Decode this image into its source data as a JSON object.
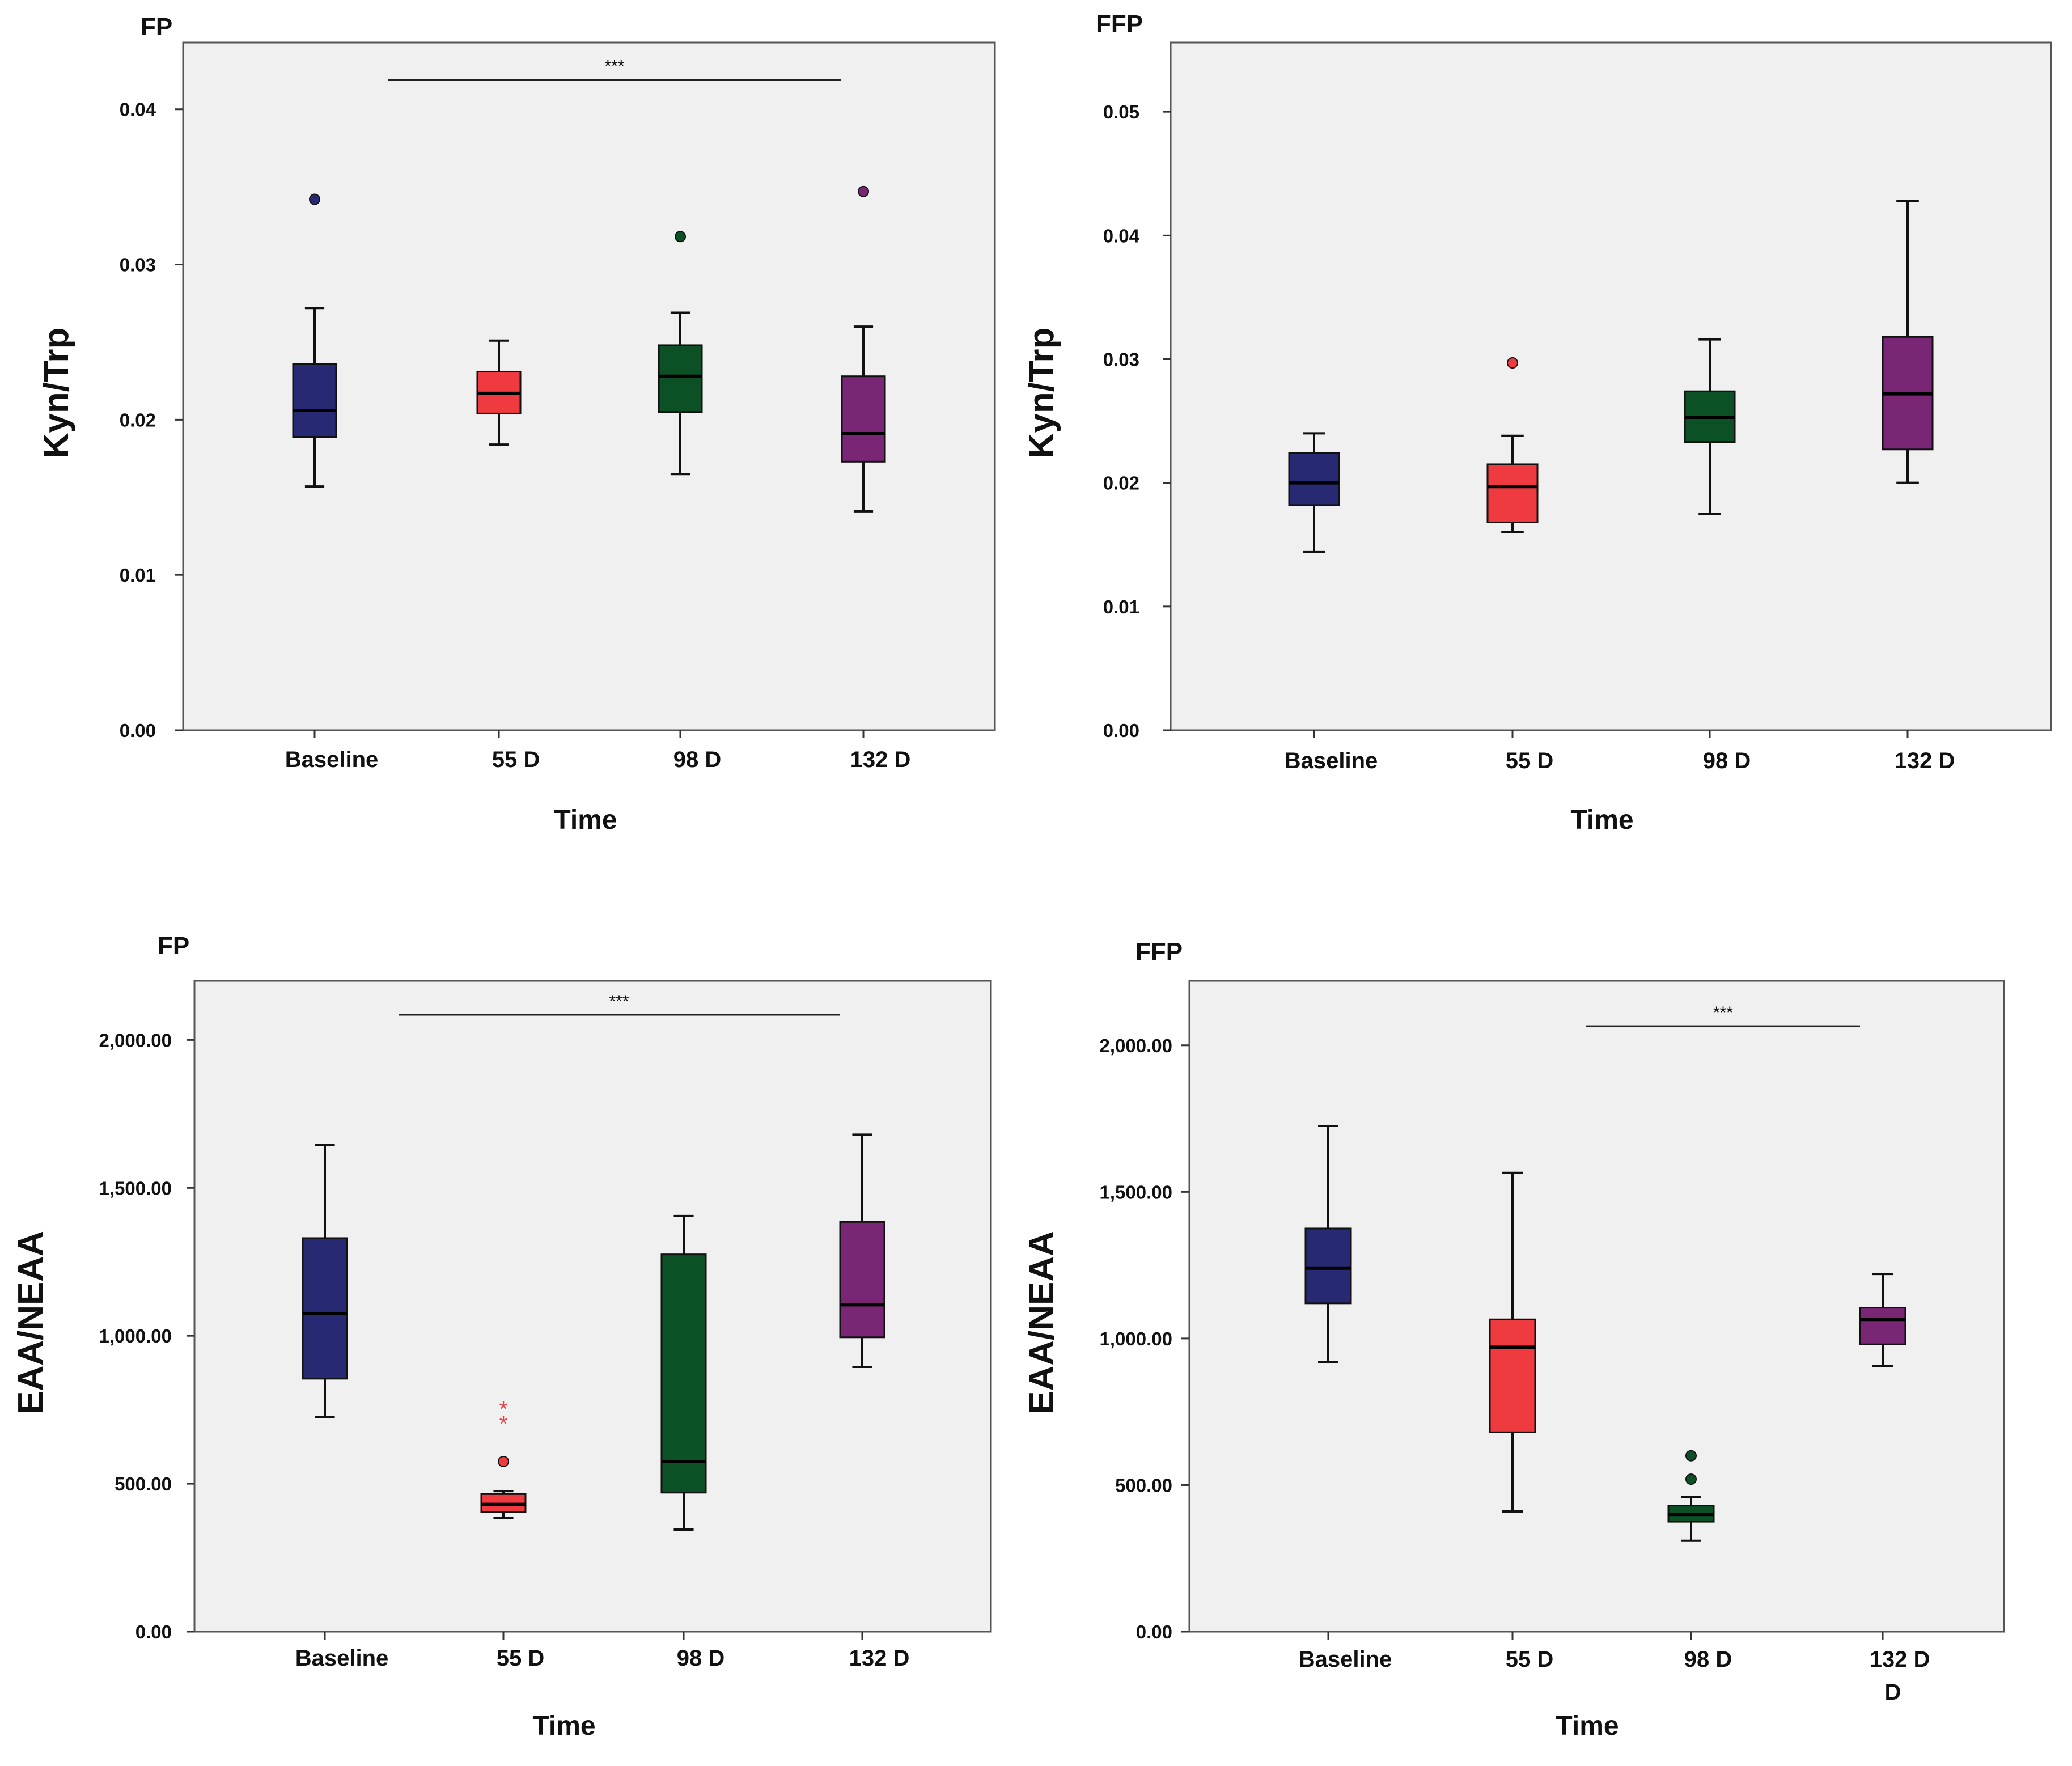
{
  "colors": {
    "Baseline": "#272a72",
    "55 D": "#ef3a3f",
    "98 D": "#0c5126",
    "132 D": "#792675"
  },
  "chart_data": [
    {
      "type": "box",
      "title": "FP",
      "xlabel": "Time",
      "ylabel": "Kyn/Trp",
      "categories": [
        "Baseline",
        "55 D",
        "98 D",
        "132 D"
      ],
      "category_labels": [
        [
          "Baseline"
        ],
        [
          "55 D"
        ],
        [
          "98 D"
        ],
        [
          "132 D"
        ]
      ],
      "yticks": [
        0.0,
        0.01,
        0.02,
        0.03,
        0.04
      ],
      "ytick_labels": [
        "0.00",
        "0.01",
        "0.02",
        "0.03",
        "0.04"
      ],
      "ylim": [
        0.0,
        0.0443
      ],
      "boxes": [
        {
          "min": 0.0157,
          "q1": 0.0189,
          "median": 0.0206,
          "q3": 0.0236,
          "max": 0.0272,
          "outliers": [
            0.0342
          ],
          "extremes": []
        },
        {
          "min": 0.0184,
          "q1": 0.0204,
          "median": 0.0217,
          "q3": 0.0231,
          "max": 0.0251,
          "outliers": [],
          "extremes": []
        },
        {
          "min": 0.0165,
          "q1": 0.0205,
          "median": 0.0228,
          "q3": 0.0248,
          "max": 0.0269,
          "outliers": [
            0.0318
          ],
          "extremes": []
        },
        {
          "min": 0.0141,
          "q1": 0.0173,
          "median": 0.0191,
          "q3": 0.0228,
          "max": 0.026,
          "outliers": [
            0.0347
          ],
          "extremes": []
        }
      ],
      "significance": {
        "label": "***",
        "from": 0,
        "to": 3,
        "y": 0.0419
      }
    },
    {
      "type": "box",
      "title": "FFP",
      "xlabel": "Time",
      "ylabel": "Kyn/Trp",
      "categories": [
        "Baseline",
        "55 D",
        "98 D",
        "132 D"
      ],
      "category_labels": [
        [
          "Baseline"
        ],
        [
          "55 D"
        ],
        [
          "98 D"
        ],
        [
          "132 D"
        ]
      ],
      "yticks": [
        0.0,
        0.01,
        0.02,
        0.03,
        0.04,
        0.05
      ],
      "ytick_labels": [
        "0.00",
        "0.01",
        "0.02",
        "0.03",
        "0.04",
        "0.05"
      ],
      "ylim": [
        0.0,
        0.0556
      ],
      "boxes": [
        {
          "min": 0.0144,
          "q1": 0.0182,
          "median": 0.02,
          "q3": 0.0224,
          "max": 0.024,
          "outliers": [],
          "extremes": []
        },
        {
          "min": 0.016,
          "q1": 0.0168,
          "median": 0.0197,
          "q3": 0.0215,
          "max": 0.0238,
          "outliers": [
            0.0297
          ],
          "extremes": []
        },
        {
          "min": 0.0175,
          "q1": 0.0233,
          "median": 0.0253,
          "q3": 0.0274,
          "max": 0.0316,
          "outliers": [],
          "extremes": []
        },
        {
          "min": 0.02,
          "q1": 0.0227,
          "median": 0.0272,
          "q3": 0.0318,
          "max": 0.0428,
          "outliers": [],
          "extremes": []
        }
      ],
      "significance": null
    },
    {
      "type": "box",
      "title": "FP",
      "xlabel": "Time",
      "ylabel": "EAA/NEAA",
      "categories": [
        "Baseline",
        "55 D",
        "98 D",
        "132 D"
      ],
      "category_labels": [
        [
          "Baseline"
        ],
        [
          "55 D"
        ],
        [
          "98 D"
        ],
        [
          "132 D"
        ]
      ],
      "yticks": [
        0,
        500,
        1000,
        1500,
        2000
      ],
      "ytick_labels": [
        "0.00",
        "500.00",
        "1,000.00",
        "1,500.00",
        "2,000.00"
      ],
      "ylim": [
        0,
        2200
      ],
      "boxes": [
        {
          "min": 725,
          "q1": 855,
          "median": 1075,
          "q3": 1330,
          "max": 1645,
          "outliers": [],
          "extremes": []
        },
        {
          "min": 385,
          "q1": 405,
          "median": 430,
          "q3": 465,
          "max": 475,
          "outliers": [
            575
          ],
          "extremes": [
            705,
            755
          ]
        },
        {
          "min": 345,
          "q1": 470,
          "median": 575,
          "q3": 1275,
          "max": 1405,
          "outliers": [],
          "extremes": []
        },
        {
          "min": 895,
          "q1": 995,
          "median": 1105,
          "q3": 1385,
          "max": 1680,
          "outliers": [],
          "extremes": []
        }
      ],
      "significance": {
        "label": "***",
        "from": 0,
        "to": 3,
        "y": 2085
      }
    },
    {
      "type": "box",
      "title": "FFP",
      "xlabel": "Time",
      "ylabel": "EAA/NEAA",
      "categories": [
        "Baseline",
        "55 D",
        "98 D",
        "132 D"
      ],
      "category_labels": [
        [
          "Baseline"
        ],
        [
          "55 D"
        ],
        [
          "98 D"
        ],
        [
          "132 D",
          "D"
        ]
      ],
      "yticks": [
        0,
        500,
        1000,
        1500,
        2000
      ],
      "ytick_labels": [
        "0.00",
        "500.00",
        "1,000.00",
        "1,500.00",
        "2,000.00"
      ],
      "ylim": [
        0,
        2220
      ],
      "boxes": [
        {
          "min": 920,
          "q1": 1120,
          "median": 1240,
          "q3": 1375,
          "max": 1725,
          "outliers": [],
          "extremes": []
        },
        {
          "min": 410,
          "q1": 680,
          "median": 970,
          "q3": 1065,
          "max": 1565,
          "outliers": [],
          "extremes": []
        },
        {
          "min": 310,
          "q1": 375,
          "median": 400,
          "q3": 430,
          "max": 460,
          "outliers": [
            520,
            600
          ],
          "extremes": []
        },
        {
          "min": 905,
          "q1": 980,
          "median": 1065,
          "q3": 1105,
          "max": 1220,
          "outliers": [],
          "extremes": []
        }
      ],
      "significance": {
        "label": "***",
        "from": 1,
        "to": 3,
        "y": 2065
      }
    }
  ]
}
